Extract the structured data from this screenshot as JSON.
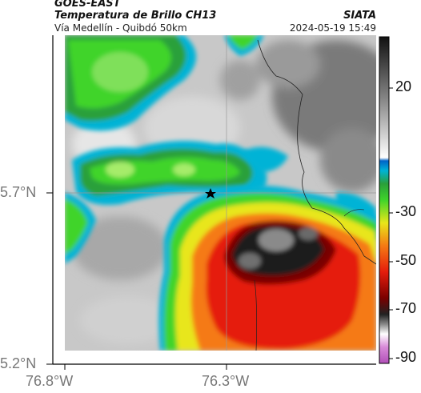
{
  "header": {
    "satellite": "GOES-EAST",
    "product": "Temperatura de Brillo CH13",
    "route": "Vía Medellín - Quibdó 50km",
    "brand": "SIATA",
    "timestamp": "2024-05-19 15:49"
  },
  "axes": {
    "lat_ticks": [
      "5.7°N",
      "5.2°N"
    ],
    "lon_ticks": [
      "76.8°W",
      "76.3°W"
    ]
  },
  "colorbar": {
    "ticks": [
      "20",
      "-30",
      "-50",
      "-70",
      "-90"
    ]
  },
  "colors": {
    "cold_core": "#2a2a2a",
    "warm_ground": "#b4b4b4",
    "green_band": "#3fd42a",
    "cyan_band": "#00b3d6",
    "red_band": "#e51c0c",
    "yellow_band": "#e8e61a"
  }
}
